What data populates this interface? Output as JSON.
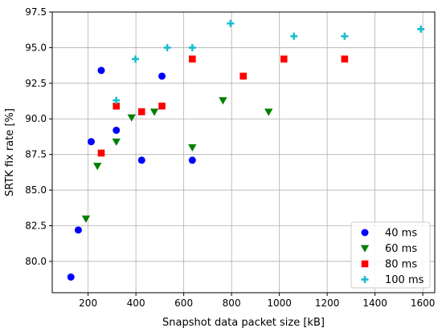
{
  "chart_data": {
    "type": "scatter",
    "title": "",
    "xlabel": "Snapshot data packet size [kB]",
    "ylabel": "SRTK fix rate [%]",
    "xlim": [
      50,
      1650
    ],
    "ylim": [
      77.8,
      97.5
    ],
    "xticks": [
      200,
      400,
      600,
      800,
      1000,
      1200,
      1400,
      1600
    ],
    "yticks": [
      80.0,
      82.5,
      85.0,
      87.5,
      90.0,
      92.5,
      95.0,
      97.5
    ],
    "grid": true,
    "legend_position": "lower-right",
    "series": [
      {
        "name": "40 ms",
        "marker": "circle",
        "color": "#0000ff",
        "points": [
          [
            128,
            78.9
          ],
          [
            159,
            82.2
          ],
          [
            213,
            88.4
          ],
          [
            255,
            93.4
          ],
          [
            318,
            89.2
          ],
          [
            424,
            87.1
          ],
          [
            509,
            93.0
          ],
          [
            636,
            87.1
          ]
        ]
      },
      {
        "name": "60 ms",
        "marker": "triangle-down",
        "color": "#008000",
        "points": [
          [
            191,
            83.0
          ],
          [
            239,
            86.7
          ],
          [
            318,
            88.4
          ],
          [
            382,
            90.1
          ],
          [
            477,
            90.5
          ],
          [
            636,
            88.0
          ],
          [
            764,
            91.3
          ],
          [
            955,
            90.5
          ]
        ]
      },
      {
        "name": "80 ms",
        "marker": "square",
        "color": "#ff0000",
        "points": [
          [
            255,
            87.6
          ],
          [
            318,
            90.9
          ],
          [
            424,
            90.5
          ],
          [
            509,
            90.9
          ],
          [
            636,
            94.2
          ],
          [
            849,
            93.0
          ],
          [
            1019,
            94.2
          ],
          [
            1273,
            94.2
          ]
        ]
      },
      {
        "name": "100 ms",
        "marker": "plus",
        "color": "#17becf",
        "points": [
          [
            318,
            91.3
          ],
          [
            398,
            94.2
          ],
          [
            531,
            95.0
          ],
          [
            636,
            95.0
          ],
          [
            796,
            96.7
          ],
          [
            1061,
            95.8
          ],
          [
            1273,
            95.8
          ],
          [
            1592,
            96.3
          ]
        ]
      }
    ]
  }
}
